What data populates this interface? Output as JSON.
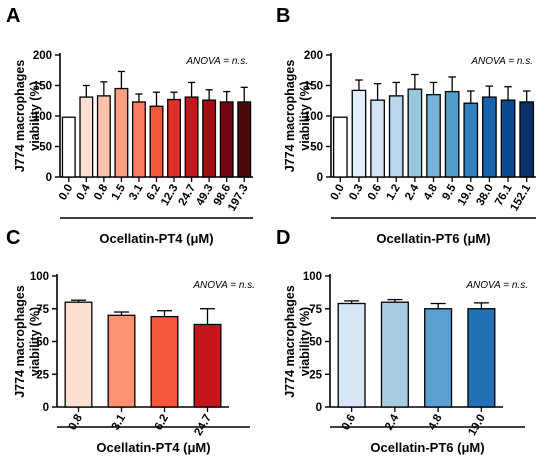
{
  "chart_data": [
    {
      "panel": "A",
      "type": "bar",
      "ylabel": "J774 macrophages viability (%)",
      "xlabel": "Ocellatin-PT4 (μM)",
      "annotation": "ANOVA = n.s.",
      "ylim": [
        0,
        200
      ],
      "yticks": [
        0,
        50,
        100,
        150,
        200
      ],
      "categories": [
        "0.0",
        "0.4",
        "0.8",
        "1.5",
        "3.1",
        "6.2",
        "12.3",
        "24.7",
        "49.3",
        "98.6",
        "197.3"
      ],
      "values": [
        98,
        131,
        133,
        145,
        123,
        116,
        127,
        131,
        126,
        123,
        123
      ],
      "errors": [
        0,
        19,
        23,
        28,
        13,
        23,
        12,
        24,
        17,
        17,
        24
      ],
      "colors": [
        "#ffffff",
        "#fde0d2",
        "#fcc3ab",
        "#fca082",
        "#fb7d5e",
        "#f4593d",
        "#e12e26",
        "#c5161c",
        "#a10f15",
        "#730710",
        "#4a0a0d"
      ]
    },
    {
      "panel": "B",
      "type": "bar",
      "ylabel": "J774 macrophages viability (%)",
      "xlabel": "Ocellatin-PT6 (μM)",
      "annotation": "ANOVA = n.s.",
      "ylim": [
        0,
        200
      ],
      "yticks": [
        0,
        50,
        100,
        150,
        200
      ],
      "categories": [
        "0.0",
        "0.3",
        "0.6",
        "1.2",
        "2.4",
        "4.8",
        "9.5",
        "19.0",
        "38.0",
        "76.1",
        "152.1"
      ],
      "values": [
        98,
        142,
        126,
        133,
        144,
        135,
        140,
        121,
        131,
        126,
        123
      ],
      "errors": [
        0,
        17,
        27,
        22,
        24,
        20,
        24,
        20,
        18,
        22,
        18
      ],
      "colors": [
        "#ffffff",
        "#e4eef9",
        "#d2e3f3",
        "#bad6eb",
        "#99c7e0",
        "#75b3d8",
        "#519ccc",
        "#3181bd",
        "#1764ab",
        "#084a91",
        "#0a306b"
      ]
    },
    {
      "panel": "C",
      "type": "bar",
      "ylabel": "J774 macrophages viability (%)",
      "xlabel": "Ocellatin-PT4 (μM)",
      "annotation": "ANOVA = n.s.",
      "ylim": [
        0,
        100
      ],
      "yticks": [
        0,
        25,
        50,
        75,
        100
      ],
      "categories": [
        "0.8",
        "3.1",
        "6.2",
        "24.7"
      ],
      "values": [
        80,
        70,
        69,
        63
      ],
      "errors": [
        1.5,
        2.5,
        4.5,
        12
      ],
      "colors": [
        "#fde0d2",
        "#fc9272",
        "#f4593d",
        "#c5161c"
      ]
    },
    {
      "panel": "D",
      "type": "bar",
      "ylabel": "J774 macrophages viability (%)",
      "xlabel": "Ocellatin-PT6 (μM)",
      "annotation": "ANOVA = n.s.",
      "ylim": [
        0,
        100
      ],
      "yticks": [
        0,
        25,
        50,
        75,
        100
      ],
      "categories": [
        "0.6",
        "2.4",
        "4.8",
        "19.0"
      ],
      "values": [
        79,
        80,
        75,
        75
      ],
      "errors": [
        2,
        2,
        4,
        4.5
      ],
      "colors": [
        "#d7e6f5",
        "#a6cbe3",
        "#5a9fcf",
        "#2270b5"
      ]
    }
  ]
}
